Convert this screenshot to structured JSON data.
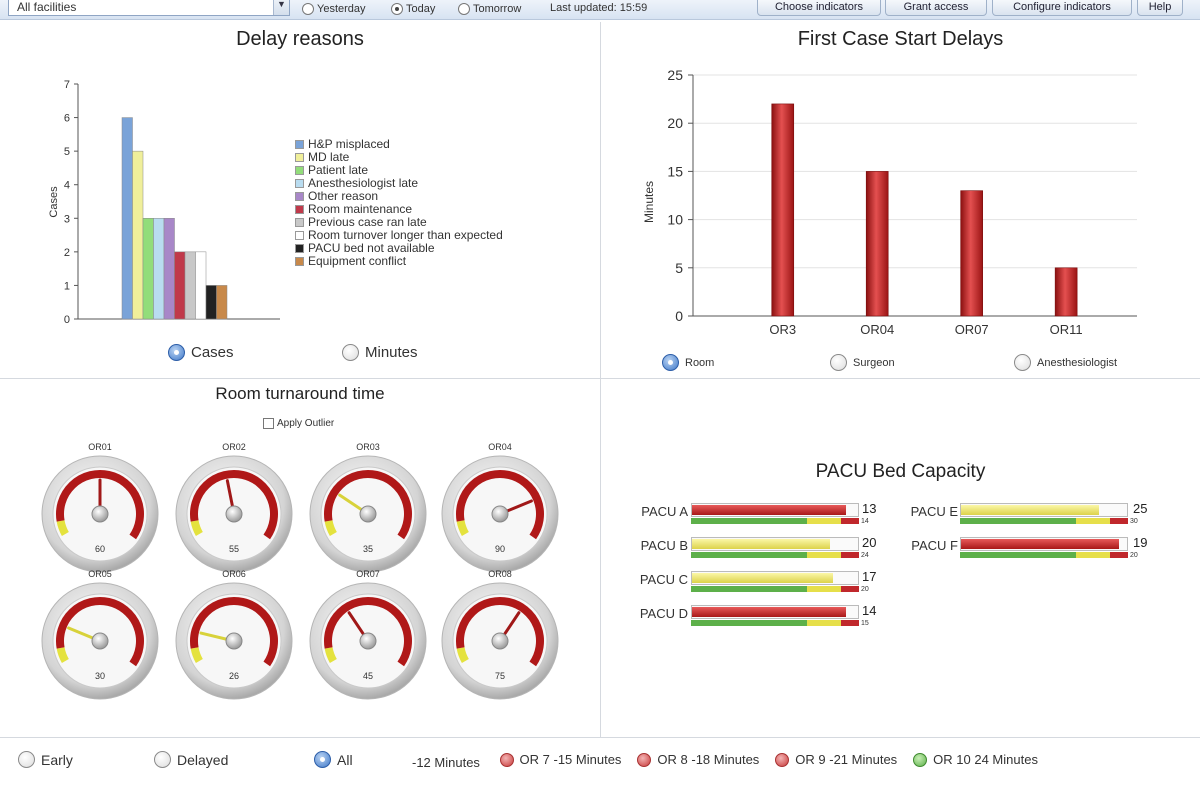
{
  "toolbar": {
    "facility": "All facilities",
    "day_options": [
      {
        "label": "Yesterday",
        "selected": false
      },
      {
        "label": "Today",
        "selected": true
      },
      {
        "label": "Tomorrow",
        "selected": false
      }
    ],
    "last_updated": "Last updated: 15:59",
    "buttons": [
      "Choose indicators",
      "Grant access",
      "Configure indicators",
      "Help"
    ]
  },
  "delay_reasons": {
    "title": "Delay reasons",
    "ylabel": "Cases",
    "options": [
      {
        "label": "Cases",
        "selected": true
      },
      {
        "label": "Minutes",
        "selected": false
      }
    ]
  },
  "first_case": {
    "title": "First Case Start Delays",
    "ylabel": "Minutes",
    "options": [
      {
        "label": "Room",
        "selected": true
      },
      {
        "label": "Surgeon",
        "selected": false
      },
      {
        "label": "Anesthesiologist",
        "selected": false
      }
    ]
  },
  "turnaround": {
    "title": "Room turnaround time",
    "outlier_label": "Apply Outlier",
    "gauges": [
      {
        "room": "OR01",
        "value": 60
      },
      {
        "room": "OR02",
        "value": 55
      },
      {
        "room": "OR03",
        "value": 35
      },
      {
        "room": "OR04",
        "value": 90
      },
      {
        "room": "OR05",
        "value": 30
      },
      {
        "room": "OR06",
        "value": 26
      },
      {
        "room": "OR07",
        "value": 45
      },
      {
        "room": "OR08",
        "value": 75
      }
    ]
  },
  "pacu": {
    "title": "PACU Bed Capacity",
    "beds": [
      {
        "name": "PACU A",
        "value": "13",
        "capacity": "14",
        "fill": 0.93,
        "color": "#c0282c"
      },
      {
        "name": "PACU B",
        "value": "20",
        "capacity": "24",
        "fill": 0.83,
        "color": "#e8e05a"
      },
      {
        "name": "PACU C",
        "value": "17",
        "capacity": "20",
        "fill": 0.85,
        "color": "#e8e05a"
      },
      {
        "name": "PACU D",
        "value": "14",
        "capacity": "15",
        "fill": 0.93,
        "color": "#c0282c"
      },
      {
        "name": "PACU E",
        "value": "25",
        "capacity": "30",
        "fill": 0.83,
        "color": "#e8e05a"
      },
      {
        "name": "PACU F",
        "value": "19",
        "capacity": "20",
        "fill": 0.95,
        "color": "#c0282c"
      }
    ]
  },
  "status": {
    "filters": [
      {
        "label": "Early",
        "selected": false
      },
      {
        "label": "Delayed",
        "selected": false
      },
      {
        "label": "All",
        "selected": true
      }
    ],
    "ticker_lead": "-12 Minutes",
    "ticker": [
      {
        "label": "OR 7 -15 Minutes",
        "color": "red"
      },
      {
        "label": "OR 8 -18 Minutes",
        "color": "red"
      },
      {
        "label": "OR 9 -21 Minutes",
        "color": "red"
      },
      {
        "label": "OR 10 24 Minutes",
        "color": "green"
      }
    ]
  },
  "chart_data": [
    {
      "type": "bar",
      "title": "Delay reasons",
      "ylabel": "Cases",
      "ylim": [
        0,
        7
      ],
      "yticks": [
        0,
        1,
        2,
        3,
        4,
        5,
        6,
        7
      ],
      "legend_position": "right",
      "grid": false,
      "series": [
        {
          "name": "H&P misplaced",
          "value": 6,
          "color": "#7aa3d8"
        },
        {
          "name": "MD late",
          "value": 5,
          "color": "#f0ef9a"
        },
        {
          "name": "Patient late",
          "value": 3,
          "color": "#92dd7a"
        },
        {
          "name": "Anesthesiologist late",
          "value": 3,
          "color": "#b9dcf0"
        },
        {
          "name": "Other reason",
          "value": 3,
          "color": "#a887c8"
        },
        {
          "name": "Room maintenance",
          "value": 2,
          "color": "#c0394a"
        },
        {
          "name": "Previous case ran late",
          "value": 2,
          "color": "#c8c8c8"
        },
        {
          "name": "Room turnover longer than expected",
          "value": 2,
          "color": "#ffffff"
        },
        {
          "name": "PACU bed not available",
          "value": 1,
          "color": "#222222"
        },
        {
          "name": "Equipment conflict",
          "value": 1,
          "color": "#c8894a"
        }
      ]
    },
    {
      "type": "bar",
      "title": "First Case Start Delays",
      "ylabel": "Minutes",
      "ylim": [
        0,
        25
      ],
      "yticks": [
        0,
        5,
        10,
        15,
        20,
        25
      ],
      "grid": true,
      "categories": [
        "OR3",
        "OR04",
        "OR07",
        "OR11"
      ],
      "values": [
        22,
        15,
        13,
        5
      ]
    }
  ]
}
